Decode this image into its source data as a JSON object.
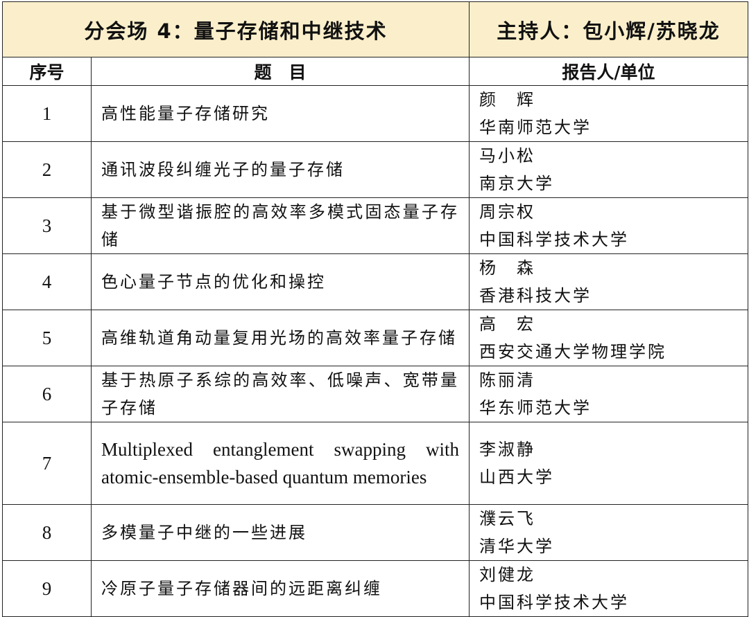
{
  "header": {
    "session": "分会场 4：量子存储和中继技术",
    "host": "主持人：包小辉/苏晓龙"
  },
  "columns": {
    "index": "序号",
    "topic": "题　目",
    "speaker": "报告人/单位"
  },
  "header_bg": "#FBEFCB",
  "rows": [
    {
      "no": "1",
      "topic": "高性能量子存储研究",
      "name": "颜　辉",
      "unit": "华南师范大学"
    },
    {
      "no": "2",
      "topic": "通讯波段纠缠光子的量子存储",
      "name": "马小松",
      "unit": "南京大学"
    },
    {
      "no": "3",
      "topic": "基于微型谐振腔的高效率多模式固态量子存储",
      "name": "周宗权",
      "unit": "中国科学技术大学"
    },
    {
      "no": "4",
      "topic": "色心量子节点的优化和操控",
      "name": "杨　森",
      "unit": "香港科技大学"
    },
    {
      "no": "5",
      "topic": "高维轨道角动量复用光场的高效率量子存储",
      "name": "高　宏",
      "unit": "西安交通大学物理学院"
    },
    {
      "no": "6",
      "topic": "基于热原子系综的高效率、低噪声、宽带量子存储",
      "name": "陈丽清",
      "unit": "华东师范大学"
    },
    {
      "no": "7",
      "topic": "Multiplexed entanglement swapping with atomic-ensemble-based quantum memories",
      "name": "李淑静",
      "unit": "山西大学"
    },
    {
      "no": "8",
      "topic": "多模量子中继的一些进展",
      "name": "濮云飞",
      "unit": "清华大学"
    },
    {
      "no": "9",
      "topic": "冷原子量子存储器间的远距离纠缠",
      "name": "刘健龙",
      "unit": "中国科学技术大学"
    }
  ]
}
